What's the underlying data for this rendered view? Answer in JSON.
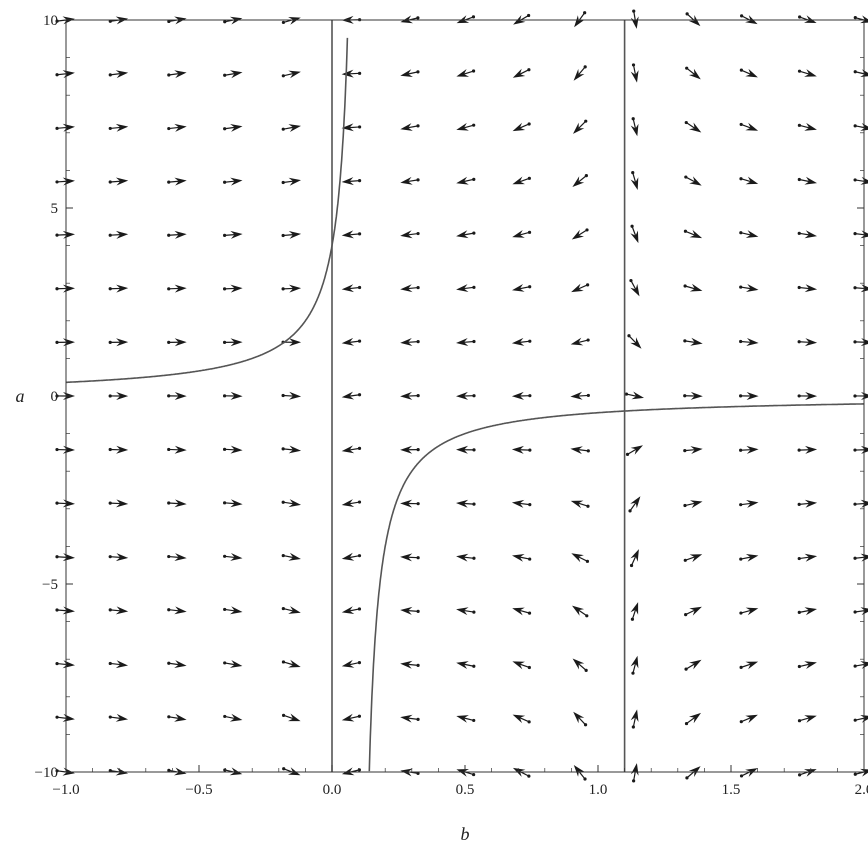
{
  "chart_data": {
    "type": "vector-field",
    "title": "",
    "xlabel": "b",
    "ylabel": "a",
    "xlim": [
      -1.0,
      2.0
    ],
    "ylim": [
      -10.0,
      10.0
    ],
    "x_ticks": [
      {
        "value": -1.0,
        "label": "−1.0"
      },
      {
        "value": -0.5,
        "label": "−0.5"
      },
      {
        "value": 0.0,
        "label": "0.0"
      },
      {
        "value": 0.5,
        "label": "0.5"
      },
      {
        "value": 1.0,
        "label": "1.0"
      },
      {
        "value": 1.5,
        "label": "1.5"
      },
      {
        "value": 2.0,
        "label": "2.0"
      }
    ],
    "y_ticks": [
      {
        "value": -10,
        "label": "−10"
      },
      {
        "value": -5,
        "label": "−5"
      },
      {
        "value": 0,
        "label": "0"
      },
      {
        "value": 5,
        "label": "5"
      },
      {
        "value": 10,
        "label": "10"
      }
    ],
    "grid": false,
    "vector_grid": {
      "b_values": [
        -1.0,
        -0.8,
        -0.58,
        -0.37,
        -0.15,
        0.07,
        0.29,
        0.5,
        0.71,
        0.93,
        1.14,
        1.36,
        1.57,
        1.79,
        2.0
      ],
      "a_values": [
        -10.0,
        -8.57,
        -7.14,
        -5.71,
        -4.29,
        -2.86,
        -1.43,
        0.0,
        1.43,
        2.86,
        4.29,
        5.71,
        7.14,
        8.57,
        10.0
      ]
    },
    "nullclines": [
      {
        "name": "",
        "kind": "vertical",
        "b": 0.0,
        "a_range": [
          -10,
          10
        ]
      },
      {
        "name": "",
        "kind": "vertical",
        "b": 1.1,
        "a_range": [
          -10,
          10
        ]
      },
      {
        "name": "",
        "kind": "curve",
        "equation": "a = -0.4 / (b - 0.1)"
      }
    ],
    "colors": {
      "curve": "#555555",
      "arrow": "#1a1a1a",
      "frame": "#333333"
    }
  }
}
